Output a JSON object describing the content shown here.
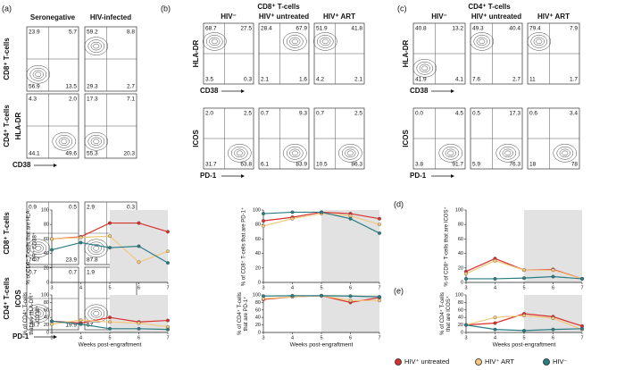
{
  "panel_labels": [
    "(a)",
    "(b)",
    "(c)",
    "(d)",
    "(e)"
  ],
  "panel_a": {
    "columns": [
      "Seronegative",
      "HIV-infected"
    ],
    "groups": [
      {
        "rows": [
          "CD8⁺ T-cells",
          "CD4⁺ T-cells"
        ],
        "y_marker": "HLA-DR",
        "x_marker": "CD38",
        "plots": [
          [
            [
              "23.9",
              "5.7",
              "56.9",
              "13.5"
            ],
            [
              "59.2",
              "8.8",
              "29.3",
              "2.7"
            ]
          ],
          [
            [
              "4.3",
              "2.0",
              "44.1",
              "49.6"
            ],
            [
              "17.3",
              "7.1",
              "55.3",
              "20.3"
            ]
          ]
        ]
      },
      {
        "rows": [
          "CD8⁺ T-cells",
          "CD4⁺ T-cells"
        ],
        "y_marker": "ICOS",
        "x_marker": "PD-1",
        "plots": [
          [
            [
              "0.9",
              "0.5",
              "74.7",
              "23.9"
            ],
            [
              "2.9",
              "0.3",
              "87.8",
              "9.0"
            ]
          ],
          [
            [
              "0.7",
              "0.7",
              "78.7",
              "19.9"
            ],
            [
              "1.9",
              "1.8",
              "57",
              "39.3"
            ]
          ]
        ]
      }
    ]
  },
  "panel_b": {
    "title": "CD8⁺ T-cells",
    "columns": [
      "HIV⁻",
      "HIV⁺ untreated",
      "HIV⁺ ART"
    ],
    "rows": [
      {
        "y_marker": "HLA-DR",
        "x_marker": "CD38",
        "plots": [
          [
            "68.7",
            "27.5",
            "3.5",
            "0.3"
          ],
          [
            "28.4",
            "67.9",
            "2.1",
            "1.6"
          ],
          [
            "51.9",
            "41.8",
            "4.2",
            "2.1"
          ]
        ]
      },
      {
        "y_marker": "ICOS",
        "x_marker": "PD-1",
        "plots": [
          [
            "2.0",
            "2.5",
            "31.7",
            "63.8"
          ],
          [
            "0.7",
            "9.3",
            "6.1",
            "83.9"
          ],
          [
            "0.7",
            "2.5",
            "10.5",
            "86.3"
          ]
        ]
      }
    ]
  },
  "panel_c": {
    "title": "CD4⁺ T-cells",
    "columns": [
      "HIV⁻",
      "HIV⁺ untreated",
      "HIV⁺ ART"
    ],
    "rows": [
      {
        "y_marker": "HLA-DR",
        "x_marker": "CD38",
        "plots": [
          [
            "40.8",
            "13.2",
            "41.9",
            "4.1"
          ],
          [
            "49.3",
            "40.4",
            "7.6",
            "2.7"
          ],
          [
            "79.4",
            "7.9",
            "11",
            "1.7"
          ]
        ]
      },
      {
        "y_marker": "ICOS",
        "x_marker": "PD-1",
        "plots": [
          [
            "0.0",
            "4.5",
            "3.8",
            "91.7"
          ],
          [
            "0.5",
            "17.3",
            "5.9",
            "76.3"
          ],
          [
            "0.6",
            "3.4",
            "18",
            "78"
          ]
        ]
      }
    ]
  },
  "legend": {
    "position": "bottom",
    "entries": [
      {
        "name": "HIV⁺ untreated",
        "color": "#d9302c"
      },
      {
        "name": "HIV⁺ ART",
        "color": "#f3c77c"
      },
      {
        "name": "HIV⁻",
        "color": "#2b7c84"
      }
    ]
  },
  "chart_data": [
    {
      "type": "line",
      "ylabel": "% of CD8⁺ T-cells that are HLA-DR⁺ CD38⁺",
      "x": [
        3,
        4,
        5,
        6,
        7
      ],
      "xlim": [
        3,
        7
      ],
      "xticks": [
        3,
        4,
        5,
        6,
        7
      ],
      "ylim": [
        0,
        100
      ],
      "yticks": [
        0,
        20,
        40,
        60,
        80,
        100
      ],
      "shaded_x": [
        5,
        7
      ],
      "series": [
        {
          "values": [
            60,
            63,
            82,
            82,
            70
          ]
        },
        {
          "values": [
            60,
            62,
            64,
            28,
            43
          ]
        },
        {
          "values": [
            45,
            55,
            48,
            50,
            27
          ]
        }
      ]
    },
    {
      "type": "line",
      "ylabel": "% of CD8⁺ T-cells that are PD-1⁺",
      "x": [
        3,
        4,
        5,
        6,
        7
      ],
      "xlim": [
        3,
        7
      ],
      "xticks": [
        3,
        4,
        5,
        6,
        7
      ],
      "ylim": [
        0,
        100
      ],
      "yticks": [
        0,
        20,
        40,
        60,
        80,
        100
      ],
      "shaded_x": [
        5,
        7
      ],
      "series": [
        {
          "values": [
            85,
            90,
            97,
            95,
            88
          ]
        },
        {
          "values": [
            78,
            88,
            95,
            92,
            80
          ]
        },
        {
          "values": [
            95,
            97,
            97,
            88,
            68
          ]
        }
      ]
    },
    {
      "type": "line",
      "ylabel": "% of CD8⁺ T-cells that are ICOS⁺",
      "x": [
        3,
        4,
        5,
        6,
        7
      ],
      "xlim": [
        3,
        7
      ],
      "xticks": [
        3,
        4,
        5,
        6,
        7
      ],
      "ylim": [
        0,
        100
      ],
      "yticks": [
        0,
        20,
        40,
        60,
        80,
        100
      ],
      "shaded_x": [
        5,
        7
      ],
      "series": [
        {
          "values": [
            15,
            33,
            17,
            18,
            5
          ]
        },
        {
          "values": [
            12,
            30,
            17,
            17,
            5
          ]
        },
        {
          "values": [
            5,
            5,
            6,
            8,
            5
          ]
        }
      ]
    },
    {
      "type": "line",
      "ylabel": "% of CD4⁺ T-cells that are HLA-DR⁺ CD38⁺",
      "xlabel": "Weeks post-engraftment",
      "x": [
        3,
        4,
        5,
        6,
        7
      ],
      "xlim": [
        3,
        7
      ],
      "xticks": [
        3,
        4,
        5,
        6,
        7
      ],
      "ylim": [
        0,
        100
      ],
      "yticks": [
        0,
        20,
        40,
        60,
        80,
        100
      ],
      "shaded_x": [
        5,
        7
      ],
      "series": [
        {
          "values": [
            30,
            25,
            40,
            28,
            32
          ]
        },
        {
          "values": [
            22,
            33,
            28,
            25,
            15
          ]
        },
        {
          "values": [
            30,
            22,
            10,
            10,
            8
          ]
        }
      ]
    },
    {
      "type": "line",
      "ylabel": "% of CD4⁺ T-cells that are PD-1⁺",
      "xlabel": "Weeks post-engraftment",
      "x": [
        3,
        4,
        5,
        6,
        7
      ],
      "xlim": [
        3,
        7
      ],
      "xticks": [
        3,
        4,
        5,
        6,
        7
      ],
      "ylim": [
        0,
        100
      ],
      "yticks": [
        0,
        20,
        40,
        60,
        80,
        100
      ],
      "shaded_x": [
        5,
        7
      ],
      "series": [
        {
          "values": [
            88,
            95,
            98,
            80,
            93
          ]
        },
        {
          "values": [
            90,
            95,
            98,
            85,
            85
          ]
        },
        {
          "values": [
            97,
            98,
            98,
            97,
            95
          ]
        }
      ]
    },
    {
      "type": "line",
      "ylabel": "% of CD4⁺ T-cells that are ICOS⁺",
      "xlabel": "Weeks post-engraftment",
      "x": [
        3,
        4,
        5,
        6,
        7
      ],
      "xlim": [
        3,
        7
      ],
      "xticks": [
        3,
        4,
        5,
        6,
        7
      ],
      "ylim": [
        0,
        100
      ],
      "yticks": [
        0,
        20,
        40,
        60,
        80,
        100
      ],
      "shaded_x": [
        5,
        7
      ],
      "series": [
        {
          "values": [
            20,
            25,
            50,
            42,
            17
          ]
        },
        {
          "values": [
            20,
            40,
            45,
            38,
            8
          ]
        },
        {
          "values": [
            20,
            8,
            5,
            8,
            10
          ]
        }
      ]
    }
  ]
}
